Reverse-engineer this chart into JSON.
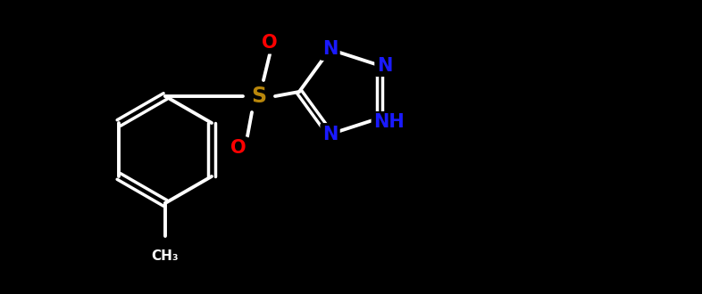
{
  "background_color": "#000000",
  "bond_color": "#ffffff",
  "atom_colors": {
    "C": "#ffffff",
    "N": "#1a1aff",
    "O": "#ff0000",
    "S": "#b8860b",
    "H": "#ffffff"
  },
  "bond_width": 2.8,
  "font_size_atom": 15,
  "figsize": [
    7.86,
    3.3
  ],
  "dpi": 100
}
